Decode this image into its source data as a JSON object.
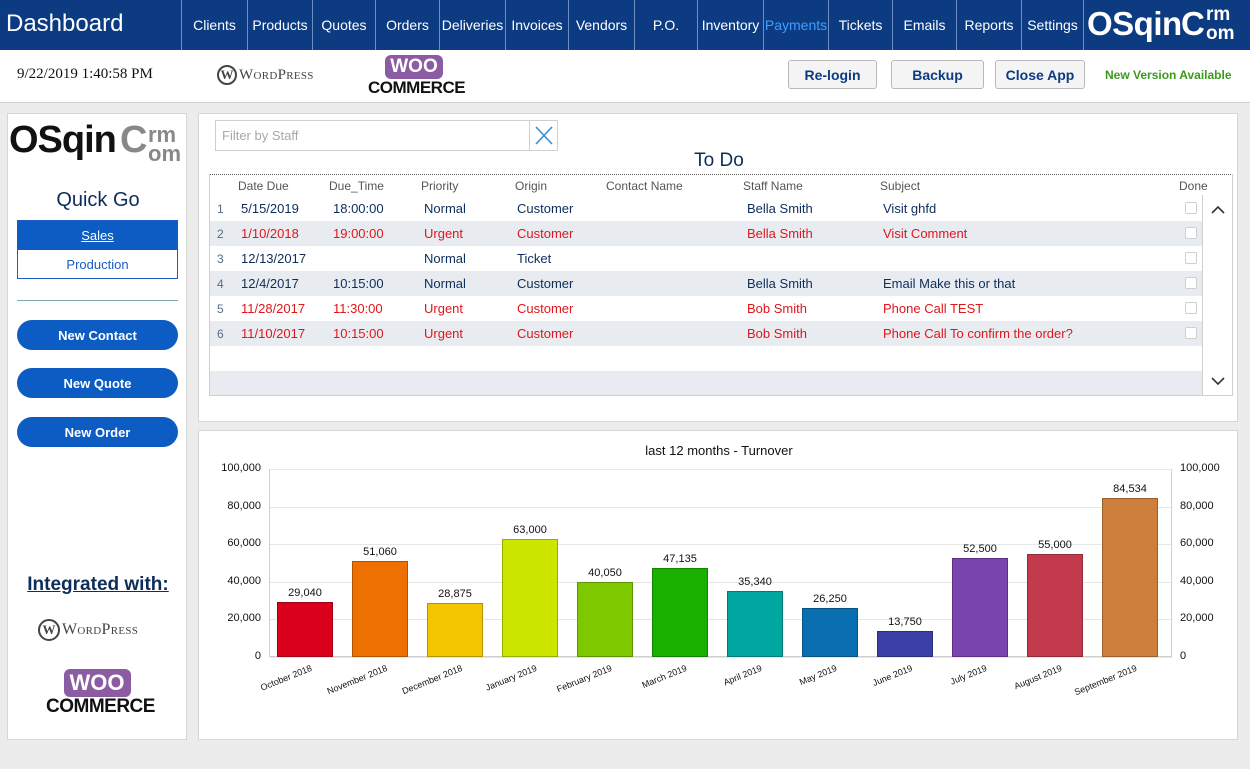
{
  "app": {
    "title": "Dashboard",
    "brand_main": "OSqin",
    "brand_sup1": "C",
    "brand_crm": "rm",
    "brand_com": "om"
  },
  "nav": [
    {
      "label": "Clients"
    },
    {
      "label": "Products"
    },
    {
      "label": "Quotes"
    },
    {
      "label": "Orders"
    },
    {
      "label": "Deliveries"
    },
    {
      "label": "Invoices"
    },
    {
      "label": "Vendors"
    },
    {
      "label": "P.O."
    },
    {
      "label": "Inventory"
    },
    {
      "label": "Payments"
    },
    {
      "label": "Tickets"
    },
    {
      "label": "Emails"
    },
    {
      "label": "Reports"
    },
    {
      "label": "Settings"
    }
  ],
  "header": {
    "datetime": "9/22/2019 1:40:58 PM",
    "wp_letter": "W",
    "wp_text": "WordPress",
    "woo_top": "WOO",
    "woo_bottom": "COMMERCE",
    "relogin": "Re-login",
    "backup": "Backup",
    "close_app": "Close App",
    "new_version": "New Version Available"
  },
  "left": {
    "quick_go": "Quick Go",
    "seg_sales": "Sales",
    "seg_production": "Production",
    "new_contact": "New Contact",
    "new_quote": "New Quote",
    "new_order": "New Order",
    "integrated": "Integrated with:"
  },
  "todo": {
    "filter_placeholder": "Filter by Staff",
    "title": "To Do",
    "headers": {
      "date_due": "Date Due",
      "due_time": "Due_Time",
      "priority": "Priority",
      "origin": "Origin",
      "contact_name": "Contact Name",
      "staff_name": "Staff Name",
      "subject": "Subject",
      "done": "Done"
    },
    "rows": [
      {
        "n": "1",
        "date": "5/15/2019",
        "time": "18:00:00",
        "priority": "Normal",
        "origin": "Customer",
        "contact": "",
        "staff": "Bella Smith",
        "subject": "Visit ghfd"
      },
      {
        "n": "2",
        "date": "1/10/2018",
        "time": "19:00:00",
        "priority": "Urgent",
        "origin": "Customer",
        "contact": "",
        "staff": "Bella Smith",
        "subject": "Visit Comment"
      },
      {
        "n": "3",
        "date": "12/13/2017",
        "time": "",
        "priority": "Normal",
        "origin": "Ticket",
        "contact": "",
        "staff": "",
        "subject": ""
      },
      {
        "n": "4",
        "date": "12/4/2017",
        "time": "10:15:00",
        "priority": "Normal",
        "origin": "Customer",
        "contact": "",
        "staff": "Bella Smith",
        "subject": "Email Make this or that"
      },
      {
        "n": "5",
        "date": "11/28/2017",
        "time": "11:30:00",
        "priority": "Urgent",
        "origin": "Customer",
        "contact": "",
        "staff": "Bob Smith",
        "subject": "Phone Call TEST"
      },
      {
        "n": "6",
        "date": "11/10/2017",
        "time": "10:15:00",
        "priority": "Urgent",
        "origin": "Customer",
        "contact": "",
        "staff": "Bob Smith",
        "subject": "Phone Call To confirm the order?"
      }
    ]
  },
  "colors": {
    "nav_bg": "#0d3b82",
    "accent_blue": "#0d5cc4",
    "urgent_red": "#e0161b",
    "normal_text": "#0d2d5a",
    "new_version_green": "#3b9a1e"
  },
  "chart_data": {
    "type": "bar",
    "title": "last 12 months - Turnover",
    "xlabel": "",
    "ylabel": "",
    "ylim": [
      0,
      100000
    ],
    "yticks": [
      "0",
      "20,000",
      "40,000",
      "60,000",
      "80,000",
      "100,000"
    ],
    "grid": true,
    "categories": [
      "October 2018",
      "November 2018",
      "December 2018",
      "January 2019",
      "February 2019",
      "March 2019",
      "April 2019",
      "May 2019",
      "June 2019",
      "July 2019",
      "August 2019",
      "September 2019"
    ],
    "values": [
      29040,
      51060,
      28875,
      63000,
      40050,
      47135,
      35340,
      26250,
      13750,
      52500,
      55000,
      84534
    ],
    "labels": [
      "29,040",
      "51,060",
      "28,875",
      "63,000",
      "40,050",
      "47,135",
      "35,340",
      "26,250",
      "13,750",
      "52,500",
      "55,000",
      "84,534"
    ],
    "colors": [
      "#d9001b",
      "#ee7000",
      "#f2c500",
      "#cde600",
      "#7ec800",
      "#19b000",
      "#00a6a0",
      "#0a6fb0",
      "#3a40a6",
      "#7b45b0",
      "#c23a4c",
      "#cf7f3c"
    ]
  }
}
